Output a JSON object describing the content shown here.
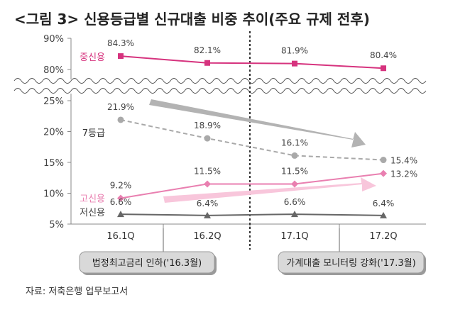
{
  "chart_data": {
    "type": "line",
    "title": "<그림 3> 신용등급별 신규대출 비중 추이(주요 규제 전후)",
    "categories": [
      "16.1Q",
      "16.2Q",
      "17.1Q",
      "17.2Q"
    ],
    "y_ticks_upper": [
      "90%",
      "80%"
    ],
    "y_ticks_lower": [
      "25%",
      "20%",
      "15%",
      "10%",
      "5%"
    ],
    "ylim_upper": [
      77,
      90
    ],
    "ylim_lower": [
      5,
      25
    ],
    "axis_break": true,
    "series": [
      {
        "name": "중신용",
        "values": [
          84.3,
          82.1,
          81.9,
          80.4
        ],
        "labels": [
          "84.3%",
          "82.1%",
          "81.9%",
          "80.4%"
        ],
        "color": "#d6337e",
        "marker": "square",
        "style": "solid"
      },
      {
        "name": "7등급",
        "values": [
          21.9,
          18.9,
          16.1,
          15.4
        ],
        "labels": [
          "21.9%",
          "18.9%",
          "16.1%",
          "15.4%"
        ],
        "color": "#a9a9a9",
        "marker": "circle",
        "style": "dashed"
      },
      {
        "name": "고신용",
        "values": [
          9.2,
          11.5,
          11.5,
          13.2
        ],
        "labels": [
          "9.2%",
          "11.5%",
          "11.5%",
          "13.2%"
        ],
        "color": "#e97fb0",
        "marker": "diamond",
        "style": "solid"
      },
      {
        "name": "저신용",
        "values": [
          6.6,
          6.4,
          6.6,
          6.4
        ],
        "labels": [
          "6.6%",
          "6.4%",
          "6.6%",
          "6.4%"
        ],
        "color": "#666666",
        "marker": "triangle",
        "style": "solid"
      }
    ],
    "annotations": {
      "callout_left": "법정최고금리 인하('16.3월)",
      "callout_right": "가계대출 모니터링 강화('17.3월)"
    },
    "source": "자료: 저축은행 업무보고서",
    "grid": false,
    "legend": "inline-left"
  }
}
